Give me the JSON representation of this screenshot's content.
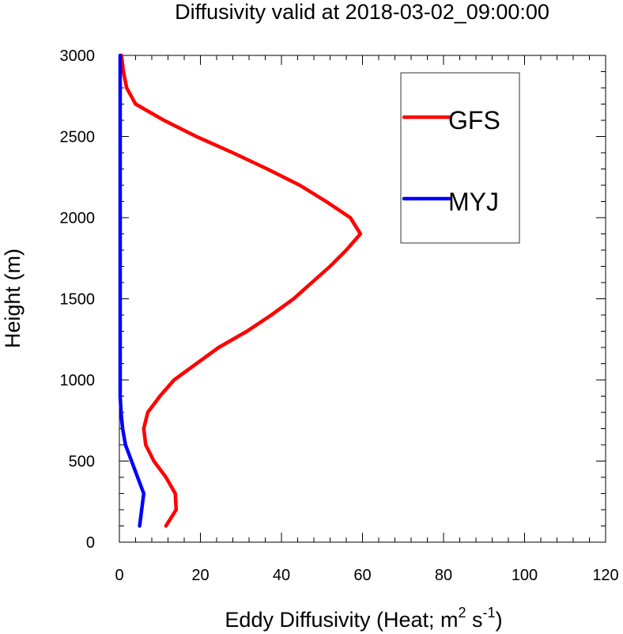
{
  "chart_data": {
    "type": "line",
    "title": "Diffusivity valid at 2018-03-02_09:00:00",
    "xlabel_prefix": "Eddy Diffusivity (Heat; m",
    "xlabel_sup1": "2",
    "xlabel_mid": " s",
    "xlabel_sup2": "-1",
    "xlabel_suffix": ")",
    "ylabel": "Height (m)",
    "xlim": [
      0,
      120
    ],
    "ylim": [
      0,
      3000
    ],
    "x_ticks": [
      0,
      20,
      40,
      60,
      80,
      100,
      120
    ],
    "y_ticks": [
      0,
      500,
      1000,
      1500,
      2000,
      2500,
      3000
    ],
    "x_tick_labels": [
      "0",
      "20",
      "40",
      "60",
      "80",
      "100",
      "120"
    ],
    "y_tick_labels": [
      "0",
      "500",
      "1000",
      "1500",
      "2000",
      "2500",
      "3000"
    ],
    "grid": false,
    "legend_position": "top-right",
    "series": [
      {
        "name": "GFS",
        "color": "#ff0000",
        "points": [
          [
            11.5,
            100
          ],
          [
            14.0,
            200
          ],
          [
            13.8,
            300
          ],
          [
            11.5,
            400
          ],
          [
            8.5,
            500
          ],
          [
            6.5,
            600
          ],
          [
            6.0,
            700
          ],
          [
            7.0,
            800
          ],
          [
            10.0,
            900
          ],
          [
            13.5,
            1000
          ],
          [
            19.0,
            1100
          ],
          [
            24.5,
            1200
          ],
          [
            31.5,
            1300
          ],
          [
            37.5,
            1400
          ],
          [
            43.0,
            1500
          ],
          [
            47.5,
            1600
          ],
          [
            52.0,
            1700
          ],
          [
            56.0,
            1800
          ],
          [
            59.5,
            1900
          ],
          [
            57.0,
            2000
          ],
          [
            51.0,
            2100
          ],
          [
            44.5,
            2200
          ],
          [
            36.5,
            2300
          ],
          [
            28.0,
            2400
          ],
          [
            19.0,
            2500
          ],
          [
            11.0,
            2600
          ],
          [
            4.0,
            2700
          ],
          [
            1.8,
            2800
          ],
          [
            1.0,
            2900
          ],
          [
            0.5,
            3000
          ]
        ]
      },
      {
        "name": "MYJ",
        "color": "#0000ff",
        "points": [
          [
            5.0,
            100
          ],
          [
            5.5,
            200
          ],
          [
            6.0,
            300
          ],
          [
            4.5,
            400
          ],
          [
            3.0,
            500
          ],
          [
            1.5,
            600
          ],
          [
            0.8,
            700
          ],
          [
            0.4,
            800
          ],
          [
            0.2,
            900
          ],
          [
            0.2,
            1000
          ],
          [
            0.2,
            1200
          ],
          [
            0.2,
            1500
          ],
          [
            0.2,
            2000
          ],
          [
            0.2,
            2500
          ],
          [
            0.2,
            3000
          ]
        ]
      }
    ]
  }
}
